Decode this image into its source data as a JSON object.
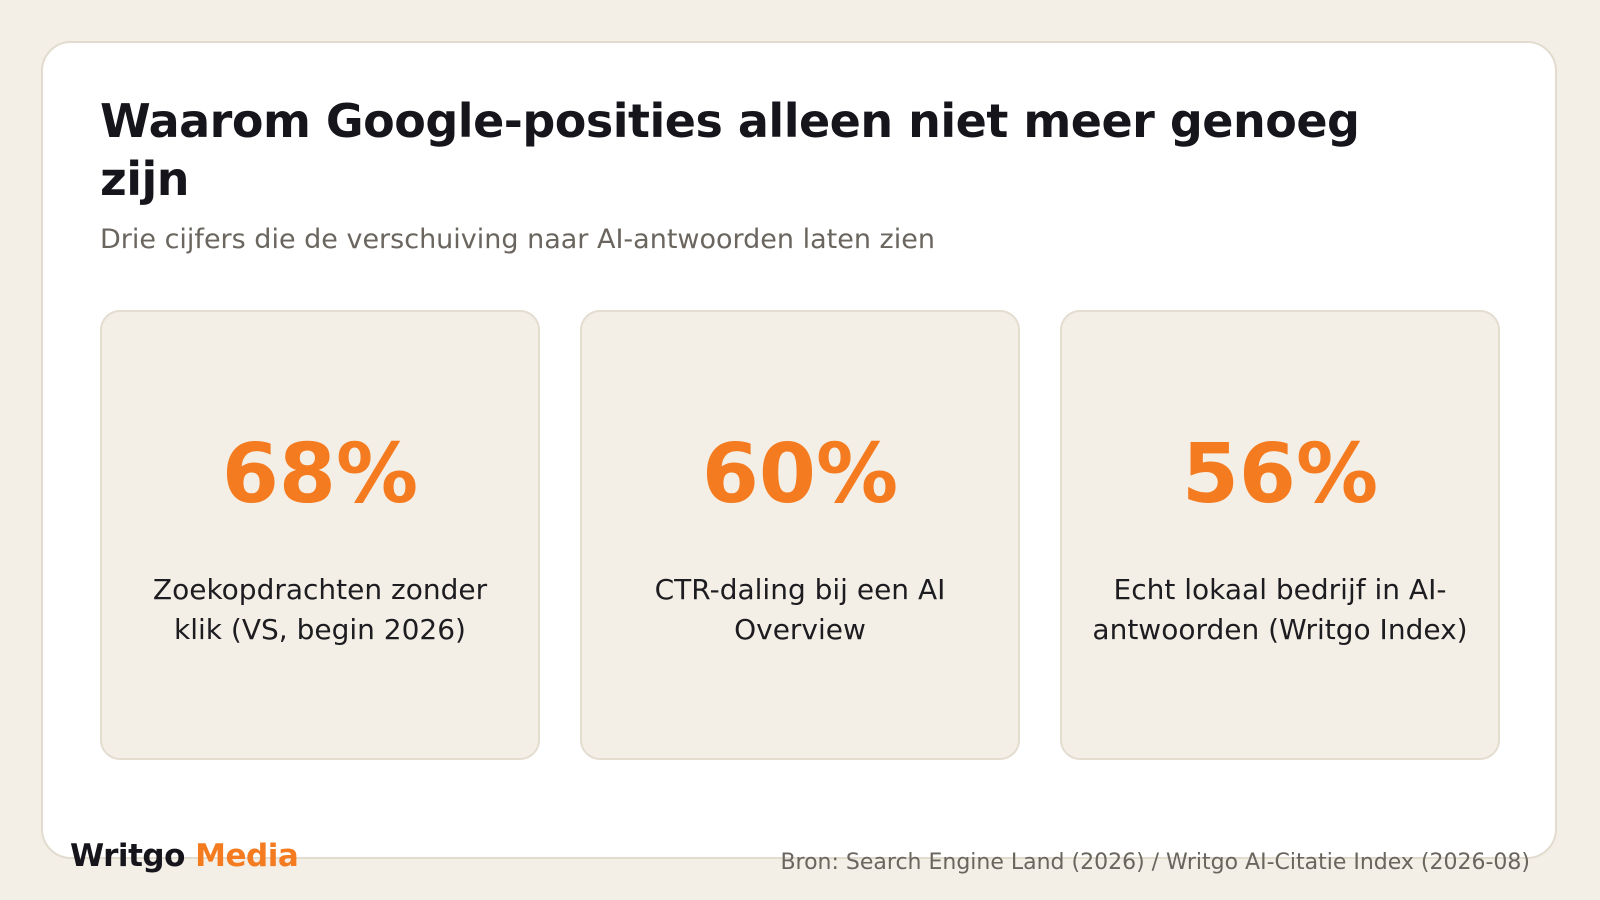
{
  "header": {
    "title": "Waarom Google-posities alleen niet meer genoeg zijn",
    "subtitle": "Drie cijfers die de verschuiving naar AI-antwoorden laten zien"
  },
  "stats": [
    {
      "value": "68%",
      "label": "Zoekopdrachten zonder klik (VS, begin 2026)"
    },
    {
      "value": "60%",
      "label": "CTR-daling bij een AI Overview"
    },
    {
      "value": "56%",
      "label": "Echt lokaal bedrijf in AI-antwoorden (Writgo Index)"
    }
  ],
  "footer": {
    "brand_name": "Writgo",
    "brand_accent": "Media",
    "source": "Bron: Search Engine Land (2026) / Writgo AI-Citatie Index (2026-08)"
  },
  "colors": {
    "accent": "#f47b20",
    "background": "#f3efe7",
    "card": "#ffffff",
    "stat_card": "#f4efe6",
    "text": "#16151c",
    "muted": "#6a655e"
  }
}
